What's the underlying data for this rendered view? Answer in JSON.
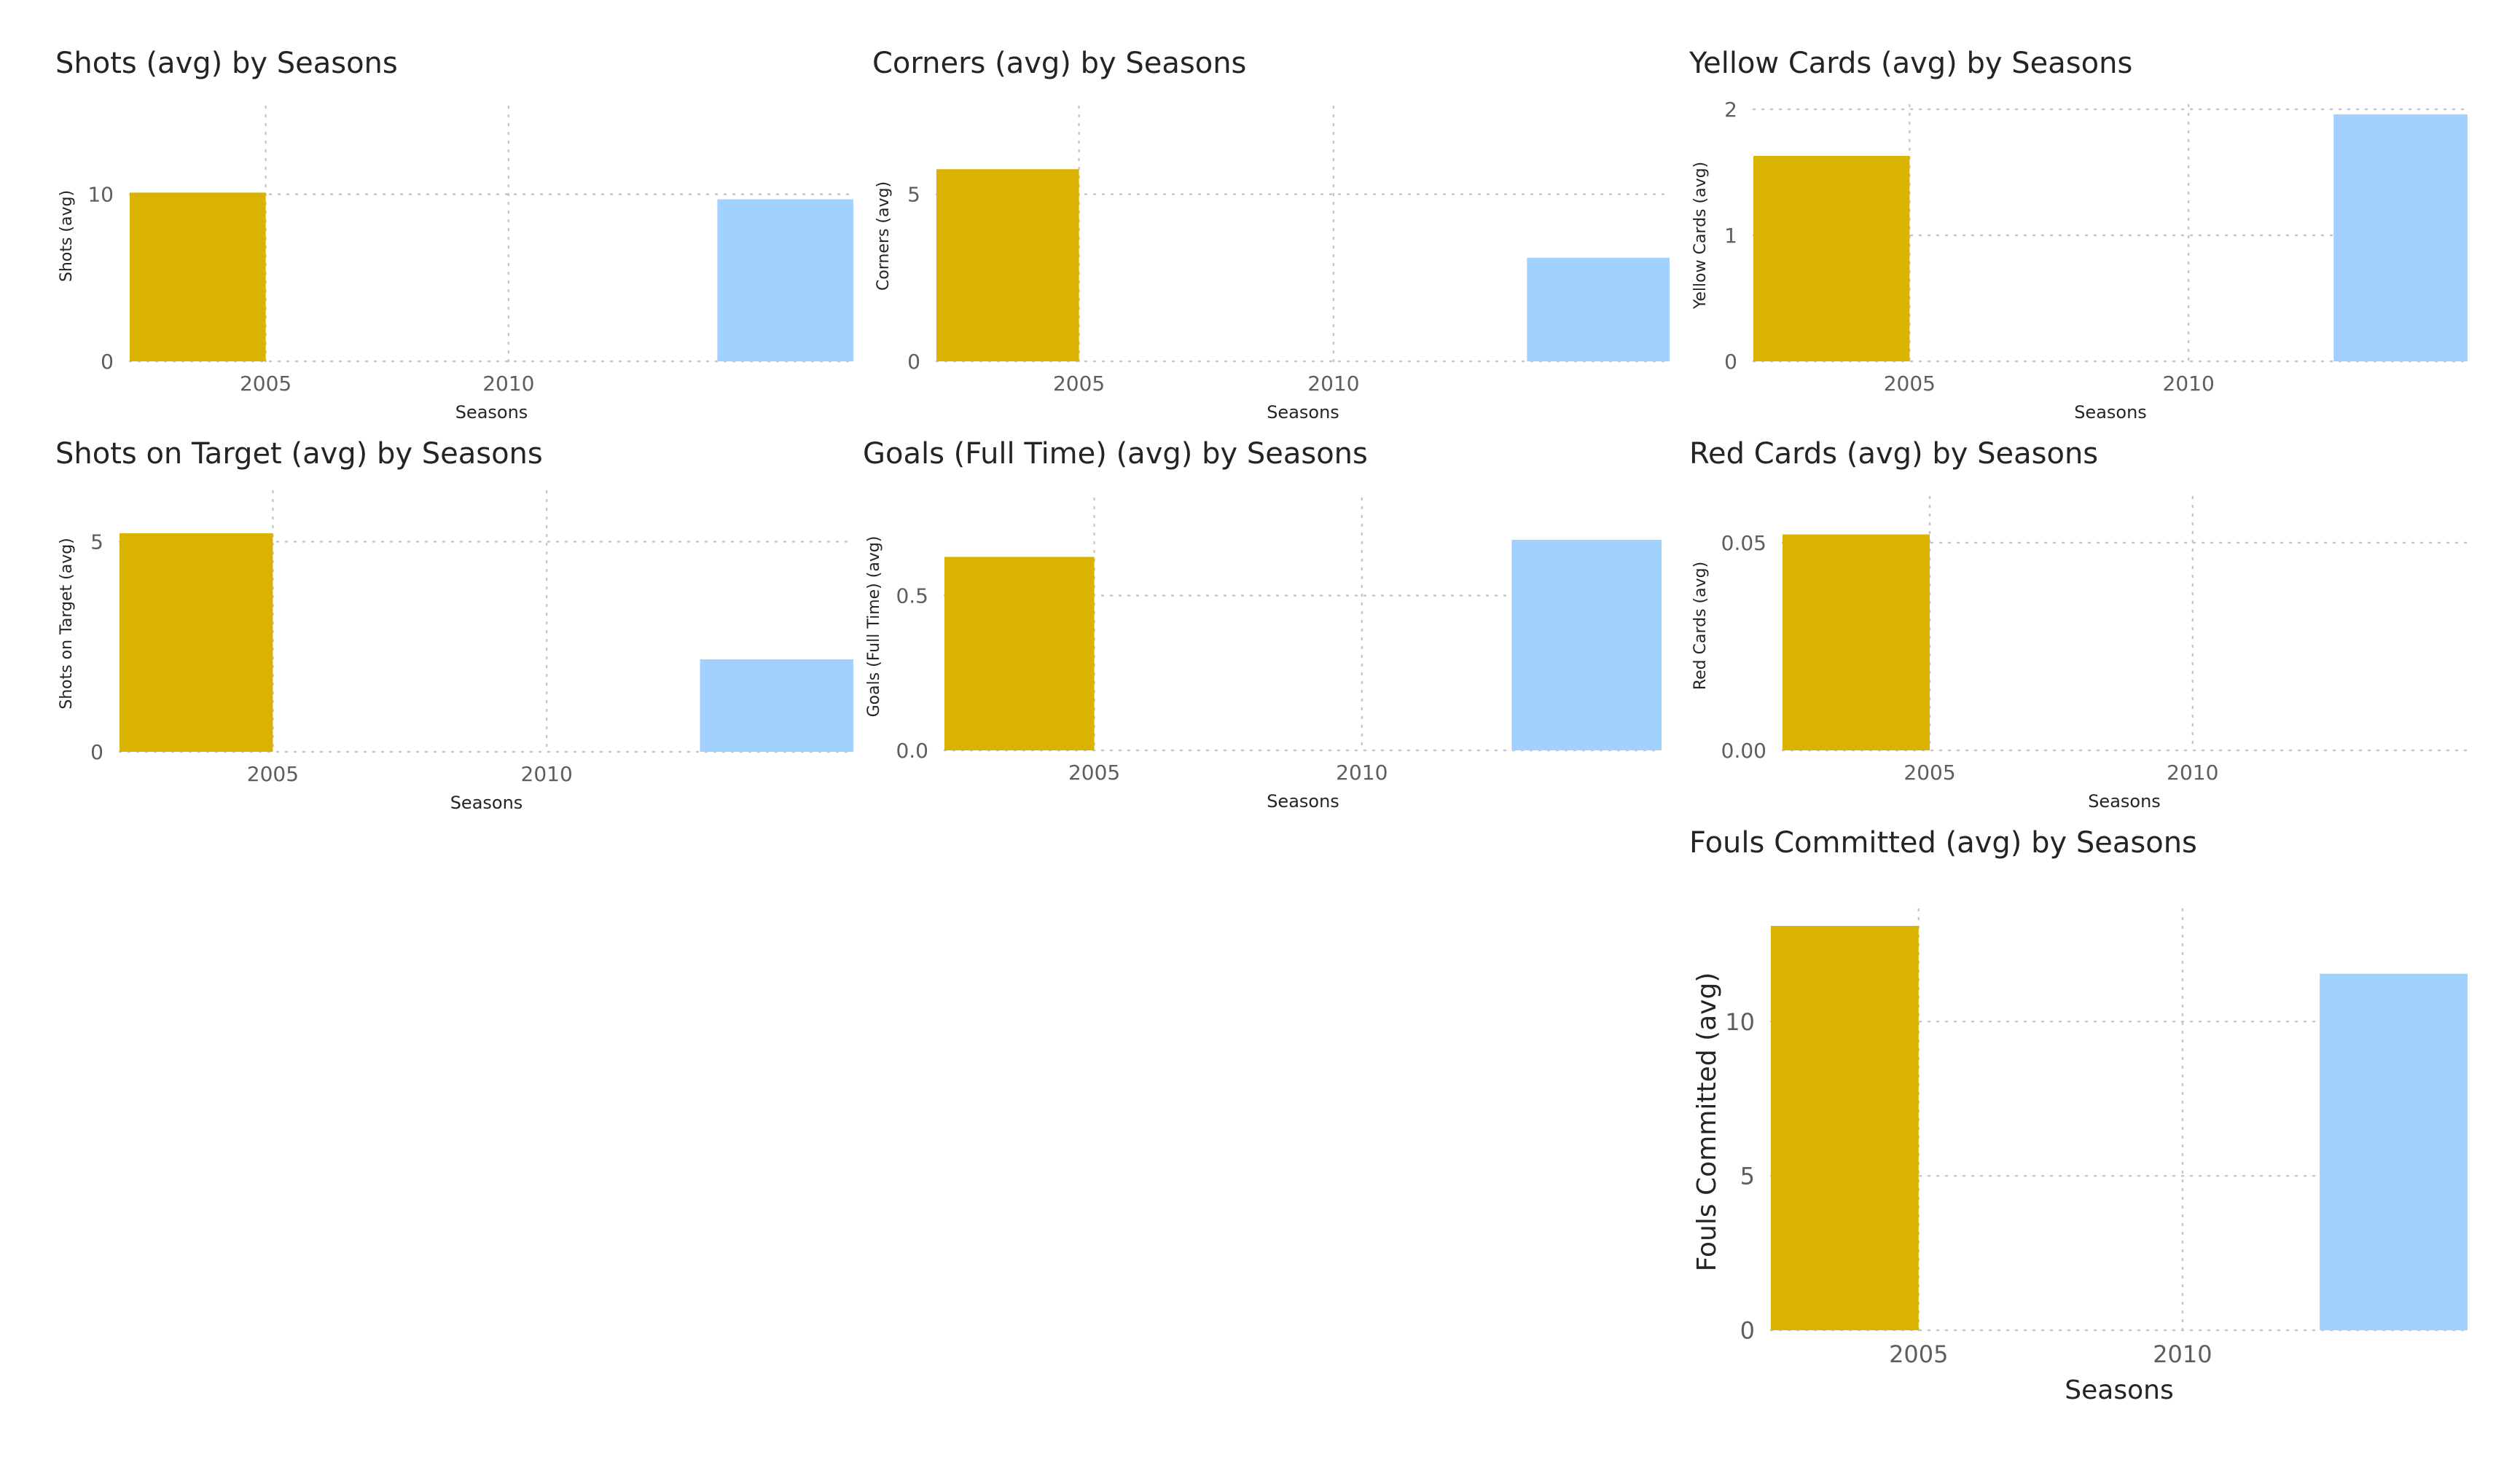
{
  "colors": {
    "season_2005": "#D9B300",
    "season_later": "#A0D1FF"
  },
  "chart_data": [
    {
      "id": "shots",
      "type": "bar",
      "title": "Shots (avg) by Seasons",
      "xlabel": "Seasons",
      "ylabel": "Shots (avg)",
      "x_ticks": [
        2005,
        2010
      ],
      "y_ticks": [
        0,
        10
      ],
      "y_tick_labels": [
        "0",
        "10"
      ],
      "xlim": [
        2002.2,
        2017.1
      ],
      "ylim": [
        0,
        15
      ],
      "grid": true,
      "bars": [
        {
          "x_start": 2002.2,
          "x_end": 2005.0,
          "value": 10.1,
          "color": "#D9B300"
        },
        {
          "x_start": 2014.3,
          "x_end": 2017.1,
          "value": 9.7,
          "color": "#A0D1FF"
        }
      ]
    },
    {
      "id": "corners",
      "type": "bar",
      "title": "Corners (avg) by Seasons",
      "xlabel": "Seasons",
      "ylabel": "Corners (avg)",
      "x_ticks": [
        2005,
        2010
      ],
      "y_ticks": [
        0,
        5
      ],
      "y_tick_labels": [
        "0",
        "5"
      ],
      "xlim": [
        2002.2,
        2016.6
      ],
      "ylim": [
        0,
        7.5
      ],
      "grid": true,
      "bars": [
        {
          "x_start": 2002.2,
          "x_end": 2005.0,
          "value": 5.75,
          "color": "#D9B300"
        },
        {
          "x_start": 2013.8,
          "x_end": 2016.6,
          "value": 3.1,
          "color": "#A0D1FF"
        }
      ]
    },
    {
      "id": "yellow_cards",
      "type": "bar",
      "title": "Yellow Cards (avg) by Seasons",
      "xlabel": "Seasons",
      "ylabel": "Yellow Cards (avg)",
      "x_ticks": [
        2005,
        2010
      ],
      "y_ticks": [
        0,
        1,
        2
      ],
      "y_tick_labels": [
        "0",
        "1",
        "2"
      ],
      "xlim": [
        2002.2,
        2015.0
      ],
      "ylim": [
        0,
        2
      ],
      "grid": true,
      "bars": [
        {
          "x_start": 2002.2,
          "x_end": 2005.0,
          "value": 1.63,
          "color": "#D9B300"
        },
        {
          "x_start": 2012.6,
          "x_end": 2015.0,
          "value": 1.96,
          "color": "#A0D1FF"
        }
      ]
    },
    {
      "id": "shots_on_target",
      "type": "bar",
      "title": "Shots on Target (avg) by Seasons",
      "xlabel": "Seasons",
      "ylabel": "Shots on Target (avg)",
      "x_ticks": [
        2005,
        2010
      ],
      "y_ticks": [
        0,
        5
      ],
      "y_tick_labels": [
        "0",
        "5"
      ],
      "xlim": [
        2002.2,
        2015.6
      ],
      "ylim": [
        0,
        6.1
      ],
      "grid": true,
      "bars": [
        {
          "x_start": 2002.2,
          "x_end": 2005.0,
          "value": 5.2,
          "color": "#D9B300"
        },
        {
          "x_start": 2012.8,
          "x_end": 2015.6,
          "value": 2.2,
          "color": "#A0D1FF"
        }
      ]
    },
    {
      "id": "goals_full_time",
      "type": "bar",
      "title": "Goals (Full Time) (avg) by Seasons",
      "xlabel": "Seasons",
      "ylabel": "Goals (Full Time) (avg)",
      "x_ticks": [
        2005,
        2010
      ],
      "y_ticks": [
        0,
        0.5
      ],
      "y_tick_labels": [
        "0.0",
        "0.5"
      ],
      "xlim": [
        2002.2,
        2015.6
      ],
      "ylim": [
        0,
        0.8
      ],
      "grid": true,
      "bars": [
        {
          "x_start": 2002.2,
          "x_end": 2005.0,
          "value": 0.625,
          "color": "#D9B300"
        },
        {
          "x_start": 2012.8,
          "x_end": 2015.6,
          "value": 0.68,
          "color": "#A0D1FF"
        }
      ]
    },
    {
      "id": "red_cards",
      "type": "bar",
      "title": "Red Cards (avg) by Seasons",
      "xlabel": "Seasons",
      "ylabel": "Red Cards (avg)",
      "x_ticks": [
        2005,
        2010
      ],
      "y_ticks": [
        0,
        0.05
      ],
      "y_tick_labels": [
        "0.00",
        "0.05"
      ],
      "xlim": [
        2002.2,
        2015.2
      ],
      "ylim": [
        0,
        0.06
      ],
      "grid": true,
      "bars": [
        {
          "x_start": 2002.2,
          "x_end": 2005.0,
          "value": 0.052,
          "color": "#D9B300"
        }
      ]
    },
    {
      "id": "fouls_committed",
      "type": "bar",
      "title": "Fouls Committed (avg) by Seasons",
      "xlabel": "Seasons",
      "ylabel": "Fouls Committed (avg)",
      "x_ticks": [
        2005,
        2010
      ],
      "y_ticks": [
        0,
        5,
        10
      ],
      "y_tick_labels": [
        "0",
        "5",
        "10"
      ],
      "xlim": [
        2002.2,
        2015.4
      ],
      "ylim": [
        0,
        13.5
      ],
      "grid": true,
      "bars": [
        {
          "x_start": 2002.2,
          "x_end": 2005.0,
          "value": 13.1,
          "color": "#D9B300"
        },
        {
          "x_start": 2012.6,
          "x_end": 2015.4,
          "value": 11.55,
          "color": "#A0D1FF"
        }
      ]
    }
  ]
}
